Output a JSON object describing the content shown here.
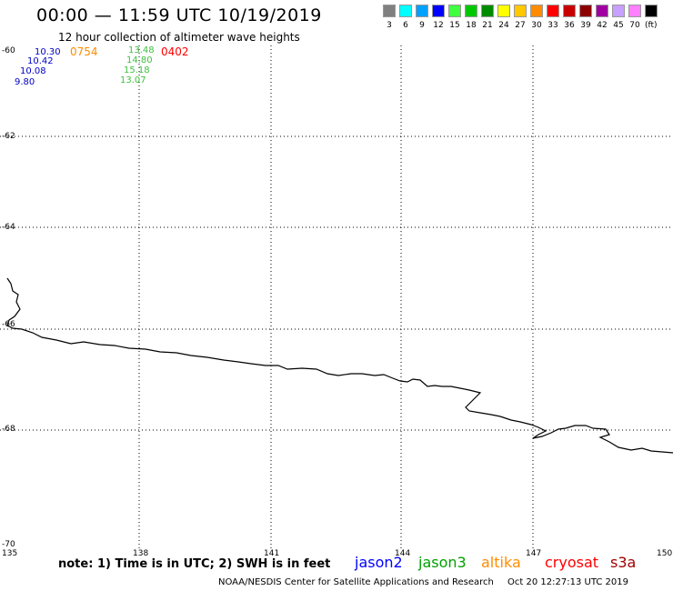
{
  "header": {
    "title": "00:00 — 11:59 UTC 10/19/2019",
    "subtitle": "12 hour collection of altimeter wave heights"
  },
  "legend": {
    "unit": "(ft)",
    "items": [
      {
        "label": "3",
        "color": "#808080"
      },
      {
        "label": "6",
        "color": "#00ffff"
      },
      {
        "label": "9",
        "color": "#00a0ff"
      },
      {
        "label": "12",
        "color": "#0000ff"
      },
      {
        "label": "15",
        "color": "#40ff40"
      },
      {
        "label": "18",
        "color": "#00c800"
      },
      {
        "label": "21",
        "color": "#008c00"
      },
      {
        "label": "24",
        "color": "#ffff00"
      },
      {
        "label": "27",
        "color": "#ffc800"
      },
      {
        "label": "30",
        "color": "#ff8c00"
      },
      {
        "label": "33",
        "color": "#ff0000"
      },
      {
        "label": "36",
        "color": "#c80000"
      },
      {
        "label": "39",
        "color": "#8c0000"
      },
      {
        "label": "42",
        "color": "#a000a0"
      },
      {
        "label": "45",
        "color": "#c8a0ff"
      },
      {
        "label": "70",
        "color": "#ff80ff"
      },
      {
        "label": "",
        "color": "#000000"
      }
    ]
  },
  "map": {
    "lat_ticks": [
      "-60",
      "-62",
      "-64",
      "-66",
      "-68",
      "-70"
    ],
    "lon_ticks": [
      "135",
      "138",
      "141",
      "144",
      "147",
      "150"
    ],
    "lat_range": [
      -70,
      -60
    ],
    "lon_range": [
      135,
      150
    ]
  },
  "obs_labels": {
    "jason2_values": [
      "10.30",
      "10.42",
      "10.08",
      "9.80"
    ],
    "jason3_values": [
      "13.48",
      "14.80",
      "15.18",
      "13.07"
    ],
    "altika_time": "0754",
    "cryosat_time": "0402"
  },
  "footer": {
    "note": "note: 1) Time is in UTC; 2) SWH is in feet",
    "satellites": [
      {
        "name": "jason2",
        "color": "#0000ff"
      },
      {
        "name": "jason3",
        "color": "#00a000"
      },
      {
        "name": "altika",
        "color": "#ff8c00"
      },
      {
        "name": "cryosat",
        "color": "#ff0000"
      },
      {
        "name": "s3a",
        "color": "#a00000"
      }
    ],
    "credit": "NOAA/NESDIS Center for Satellite Applications and Research",
    "generated": "Oct 20 12:27:13 UTC 2019"
  },
  "colors": {
    "grid": "#000000",
    "coast": "#000000",
    "jason2": "#0000c8",
    "jason3": "#40c040",
    "altika": "#ff8c00",
    "cryosat": "#ff0000"
  }
}
